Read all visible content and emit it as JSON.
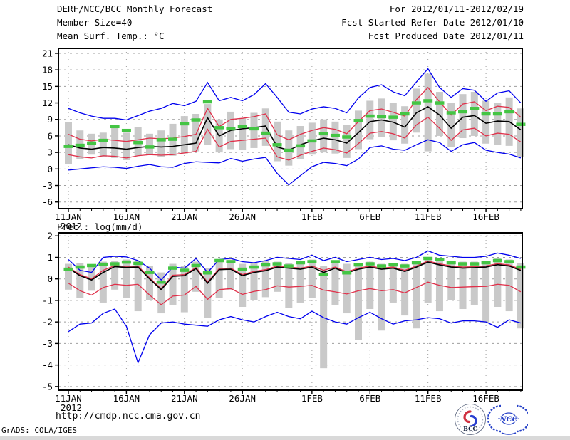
{
  "header": {
    "title": "DERF/NCC/BCC Monthly Forecast",
    "member_size": "Member Size=40",
    "for_range": "For 2012/01/11-2012/02/19",
    "refer_date": "Fcst Started Refer Date 2012/01/10",
    "produced_date": "Fcst Produced Date 2012/01/11"
  },
  "footer": {
    "url": "http://cmdp.ncc.cma.gov.cn",
    "credit": "GrADS: COLA/IGES",
    "logos": [
      "BCC",
      "NCC"
    ]
  },
  "colors": {
    "blue": "#0000ee",
    "red": "#e0304a",
    "black": "#000000",
    "green": "#44c544",
    "gray": "#c9c9c9",
    "grid": "#9e9e9e"
  },
  "chart_data": [
    {
      "type": "line",
      "title": "Mean Surf. Temp.: °C",
      "panel": "temperature",
      "ylim": [
        -6,
        21
      ],
      "yticks": [
        21,
        18,
        15,
        12,
        9,
        6,
        3,
        0,
        -3,
        -6
      ],
      "xticks": [
        {
          "day": 1,
          "label": "11JAN",
          "year": "2012"
        },
        {
          "day": 6,
          "label": "16JAN"
        },
        {
          "day": 11,
          "label": "21JAN"
        },
        {
          "day": 16,
          "label": "26JAN"
        },
        {
          "day": 22,
          "label": "1FEB"
        },
        {
          "day": 27,
          "label": "6FEB"
        },
        {
          "day": 32,
          "label": "11FEB"
        },
        {
          "day": 37,
          "label": "16FEB"
        }
      ],
      "x": [
        "11JAN",
        "12JAN",
        "13JAN",
        "14JAN",
        "15JAN",
        "16JAN",
        "17JAN",
        "18JAN",
        "19JAN",
        "20JAN",
        "21JAN",
        "22JAN",
        "23JAN",
        "24JAN",
        "25JAN",
        "26JAN",
        "27JAN",
        "28JAN",
        "29JAN",
        "30JAN",
        "31JAN",
        "01FEB",
        "02FEB",
        "03FEB",
        "04FEB",
        "05FEB",
        "06FEB",
        "07FEB",
        "08FEB",
        "09FEB",
        "10FEB",
        "11FEB",
        "12FEB",
        "13FEB",
        "14FEB",
        "15FEB",
        "16FEB",
        "17FEB",
        "18FEB",
        "19FEB"
      ],
      "series": [
        {
          "name": "member-max",
          "color": "blue",
          "values": [
            11.0,
            10.2,
            9.6,
            9.2,
            9.2,
            8.9,
            9.7,
            10.5,
            11.0,
            11.9,
            11.5,
            12.3,
            15.7,
            12.4,
            13.0,
            12.4,
            13.5,
            15.5,
            13.0,
            10.3,
            10.0,
            10.9,
            11.3,
            11.0,
            10.2,
            12.9,
            14.8,
            15.3,
            14.0,
            13.3,
            15.8,
            18.2,
            14.8,
            13.0,
            14.6,
            14.3,
            12.3,
            13.8,
            14.2,
            12.0
          ]
        },
        {
          "name": "mean-plus-sd",
          "color": "red",
          "values": [
            6.3,
            5.4,
            5.1,
            5.4,
            5.2,
            5.0,
            5.3,
            5.6,
            5.5,
            5.6,
            5.9,
            6.3,
            11.0,
            7.7,
            9.0,
            9.2,
            9.5,
            10.0,
            6.2,
            5.3,
            6.3,
            7.0,
            7.5,
            7.2,
            6.4,
            8.6,
            10.6,
            10.9,
            10.3,
            9.6,
            12.6,
            14.8,
            12.2,
            9.8,
            11.8,
            12.2,
            10.6,
            11.4,
            11.2,
            9.4
          ]
        },
        {
          "name": "mean-minus-sd",
          "color": "red",
          "values": [
            2.6,
            2.2,
            2.0,
            2.4,
            2.3,
            2.0,
            2.4,
            2.6,
            2.5,
            2.6,
            2.9,
            3.2,
            7.2,
            4.0,
            5.0,
            5.2,
            5.4,
            5.6,
            2.2,
            1.6,
            2.5,
            3.2,
            3.8,
            3.5,
            2.9,
            4.6,
            6.5,
            6.8,
            6.4,
            5.6,
            8.0,
            9.4,
            7.4,
            5.2,
            7.1,
            7.4,
            6.0,
            6.5,
            6.3,
            4.9
          ]
        },
        {
          "name": "member-min",
          "color": "blue",
          "values": [
            -0.2,
            0.0,
            0.2,
            0.4,
            0.3,
            0.1,
            0.5,
            0.8,
            0.4,
            0.3,
            1.0,
            1.3,
            1.2,
            1.1,
            1.9,
            1.4,
            1.8,
            2.1,
            -0.8,
            -2.9,
            -1.2,
            0.4,
            1.2,
            1.0,
            0.6,
            1.8,
            3.9,
            4.2,
            3.6,
            3.4,
            4.4,
            5.3,
            4.8,
            3.2,
            4.4,
            4.8,
            3.4,
            3.0,
            2.7,
            2.0
          ]
        },
        {
          "name": "ensemble-mean",
          "color": "black",
          "values": [
            4.4,
            3.8,
            3.6,
            3.9,
            3.8,
            3.6,
            3.9,
            4.1,
            4.0,
            4.1,
            4.4,
            4.7,
            9.3,
            6.0,
            7.0,
            7.3,
            7.5,
            7.8,
            4.0,
            3.4,
            4.4,
            5.1,
            5.6,
            5.3,
            4.7,
            6.6,
            8.6,
            8.9,
            8.5,
            7.6,
            10.2,
            11.3,
            9.8,
            7.4,
            9.4,
            9.7,
            8.3,
            8.7,
            8.6,
            7.1
          ]
        },
        {
          "name": "observation",
          "color": "green",
          "style": "thick-dash",
          "values": [
            4.1,
            4.3,
            4.7,
            5.2,
            7.7,
            7.0,
            4.8,
            4.0,
            5.3,
            5.4,
            8.2,
            8.9,
            12.2,
            7.5,
            7.3,
            7.7,
            7.3,
            6.5,
            4.4,
            3.4,
            4.2,
            5.1,
            6.4,
            6.1,
            5.8,
            8.8,
            9.6,
            9.5,
            9.4,
            10.0,
            12.0,
            12.4,
            12.0,
            10.2,
            10.4,
            11.0,
            10.0,
            10.0,
            10.4,
            8.1
          ]
        }
      ],
      "spread_bars": {
        "low": [
          0.9,
          1.8,
          2.6,
          2.2,
          2.0,
          1.6,
          2.4,
          2.6,
          2.2,
          2.4,
          2.8,
          3.2,
          4.4,
          3.0,
          3.6,
          3.4,
          3.8,
          4.2,
          1.4,
          0.6,
          1.8,
          2.6,
          3.0,
          2.8,
          2.0,
          3.6,
          5.4,
          5.8,
          5.2,
          4.6,
          6.6,
          3.2,
          6.0,
          4.0,
          5.6,
          6.0,
          4.6,
          4.4,
          4.2,
          2.2
        ],
        "high": [
          8.5,
          7.0,
          6.4,
          6.6,
          8.0,
          6.6,
          7.6,
          6.4,
          7.0,
          8.2,
          9.6,
          10.0,
          11.8,
          9.0,
          10.4,
          9.2,
          10.2,
          11.0,
          8.6,
          7.0,
          7.8,
          8.4,
          9.0,
          8.6,
          8.0,
          10.6,
          12.4,
          12.8,
          12.0,
          11.4,
          14.6,
          17.3,
          14.0,
          12.0,
          13.6,
          14.0,
          12.4,
          12.0,
          13.0,
          11.0
        ]
      }
    },
    {
      "type": "line",
      "title": "Prec.: log(mm/d)",
      "panel": "precipitation",
      "ylim": [
        -5,
        2
      ],
      "yticks": [
        2,
        1,
        0,
        -1,
        -2,
        -3,
        -4,
        -5
      ],
      "xticks": [
        {
          "day": 1,
          "label": "11JAN",
          "year": "2012"
        },
        {
          "day": 6,
          "label": "16JAN"
        },
        {
          "day": 11,
          "label": "21JAN"
        },
        {
          "day": 16,
          "label": "26JAN"
        },
        {
          "day": 22,
          "label": "1FEB"
        },
        {
          "day": 27,
          "label": "6FEB"
        },
        {
          "day": 32,
          "label": "11FEB"
        },
        {
          "day": 37,
          "label": "16FEB"
        }
      ],
      "x": [
        "11JAN",
        "12JAN",
        "13JAN",
        "14JAN",
        "15JAN",
        "16JAN",
        "17JAN",
        "18JAN",
        "19JAN",
        "20JAN",
        "21JAN",
        "22JAN",
        "23JAN",
        "24JAN",
        "25JAN",
        "26JAN",
        "27JAN",
        "28JAN",
        "29JAN",
        "30JAN",
        "31JAN",
        "01FEB",
        "02FEB",
        "03FEB",
        "04FEB",
        "05FEB",
        "06FEB",
        "07FEB",
        "08FEB",
        "09FEB",
        "10FEB",
        "11FEB",
        "12FEB",
        "13FEB",
        "14FEB",
        "15FEB",
        "16FEB",
        "17FEB",
        "18FEB",
        "19FEB"
      ],
      "series": [
        {
          "name": "member-max",
          "color": "blue",
          "values": [
            0.9,
            0.4,
            0.3,
            1.0,
            1.05,
            1.02,
            0.85,
            0.5,
            -0.05,
            0.55,
            0.5,
            0.95,
            0.3,
            0.9,
            0.95,
            0.8,
            0.75,
            0.85,
            1.0,
            0.95,
            0.9,
            1.1,
            0.85,
            1.0,
            0.8,
            0.9,
            1.0,
            0.9,
            0.95,
            0.85,
            1.0,
            1.3,
            1.1,
            1.05,
            1.0,
            1.0,
            1.05,
            1.2,
            1.1,
            0.95
          ]
        },
        {
          "name": "mean-plus-sd",
          "color": "red",
          "values": [
            0.55,
            0.2,
            0.0,
            0.4,
            0.62,
            0.58,
            0.6,
            0.05,
            -0.45,
            0.17,
            0.2,
            0.53,
            -0.15,
            0.48,
            0.5,
            0.2,
            0.35,
            0.43,
            0.6,
            0.55,
            0.5,
            0.6,
            0.4,
            0.55,
            0.33,
            0.5,
            0.6,
            0.5,
            0.55,
            0.4,
            0.6,
            0.83,
            0.7,
            0.6,
            0.55,
            0.57,
            0.6,
            0.71,
            0.65,
            0.44
          ]
        },
        {
          "name": "mean-minus-sd",
          "color": "red",
          "values": [
            -0.2,
            -0.55,
            -0.75,
            -0.4,
            -0.25,
            -0.3,
            -0.25,
            -0.75,
            -1.2,
            -0.8,
            -0.75,
            -0.35,
            -0.95,
            -0.5,
            -0.45,
            -0.72,
            -0.58,
            -0.5,
            -0.32,
            -0.38,
            -0.35,
            -0.3,
            -0.52,
            -0.6,
            -0.7,
            -0.55,
            -0.45,
            -0.55,
            -0.5,
            -0.65,
            -0.4,
            -0.15,
            -0.3,
            -0.4,
            -0.38,
            -0.36,
            -0.35,
            -0.25,
            -0.3,
            -0.6
          ]
        },
        {
          "name": "member-min",
          "color": "blue",
          "values": [
            -2.45,
            -2.1,
            -2.05,
            -1.6,
            -1.4,
            -2.2,
            -3.9,
            -2.6,
            -2.05,
            -2.0,
            -2.1,
            -2.15,
            -2.2,
            -1.9,
            -1.75,
            -1.9,
            -2.0,
            -1.75,
            -1.55,
            -1.75,
            -1.85,
            -1.5,
            -1.8,
            -2.0,
            -2.1,
            -1.8,
            -1.55,
            -1.85,
            -2.1,
            -1.95,
            -1.9,
            -1.8,
            -1.85,
            -2.05,
            -1.95,
            -1.95,
            -2.0,
            -2.25,
            -1.9,
            -2.05
          ]
        },
        {
          "name": "ensemble-mean",
          "color": "black",
          "values": [
            0.5,
            0.15,
            -0.05,
            0.3,
            0.57,
            0.53,
            0.55,
            0.0,
            -0.5,
            0.12,
            0.15,
            0.48,
            -0.2,
            0.43,
            0.45,
            0.15,
            0.3,
            0.38,
            0.55,
            0.5,
            0.45,
            0.55,
            0.3,
            0.5,
            0.28,
            0.45,
            0.55,
            0.45,
            0.5,
            0.35,
            0.55,
            0.78,
            0.65,
            0.55,
            0.5,
            0.52,
            0.55,
            0.66,
            0.6,
            0.39
          ]
        },
        {
          "name": "observation",
          "color": "green",
          "style": "thick-dash",
          "values": [
            0.45,
            0.55,
            0.62,
            0.68,
            0.7,
            0.78,
            0.72,
            0.3,
            -0.15,
            0.5,
            0.4,
            0.62,
            0.28,
            0.85,
            0.8,
            0.45,
            0.55,
            0.65,
            0.7,
            0.6,
            0.75,
            0.8,
            0.2,
            0.8,
            0.28,
            0.65,
            0.7,
            0.6,
            0.65,
            0.6,
            0.75,
            0.95,
            0.9,
            0.75,
            0.7,
            0.7,
            0.75,
            0.85,
            0.8,
            0.55
          ]
        }
      ],
      "spread_bars": {
        "low": [
          -0.5,
          -0.9,
          -0.55,
          -1.1,
          -0.5,
          -0.9,
          -1.5,
          -1.0,
          -1.6,
          -1.2,
          -1.55,
          -0.6,
          -1.8,
          -0.9,
          -0.5,
          -1.3,
          -1.0,
          -0.85,
          -0.6,
          -1.35,
          -1.1,
          -0.9,
          -4.15,
          -1.2,
          -1.6,
          -2.85,
          -1.4,
          -2.4,
          -1.1,
          -1.7,
          -2.3,
          -1.1,
          -1.5,
          -1.0,
          -1.4,
          -1.2,
          -2.05,
          -1.3,
          -1.5,
          -2.3
        ],
        "high": [
          0.7,
          0.75,
          0.6,
          0.8,
          0.85,
          0.9,
          0.85,
          0.6,
          0.3,
          0.7,
          0.6,
          0.8,
          0.5,
          0.85,
          0.9,
          0.7,
          0.75,
          0.85,
          0.8,
          0.75,
          0.8,
          0.9,
          0.6,
          0.85,
          0.7,
          0.75,
          0.8,
          0.7,
          0.75,
          0.7,
          0.8,
          1.0,
          0.95,
          0.85,
          0.8,
          0.8,
          0.85,
          0.95,
          0.9,
          0.75
        ]
      }
    }
  ]
}
